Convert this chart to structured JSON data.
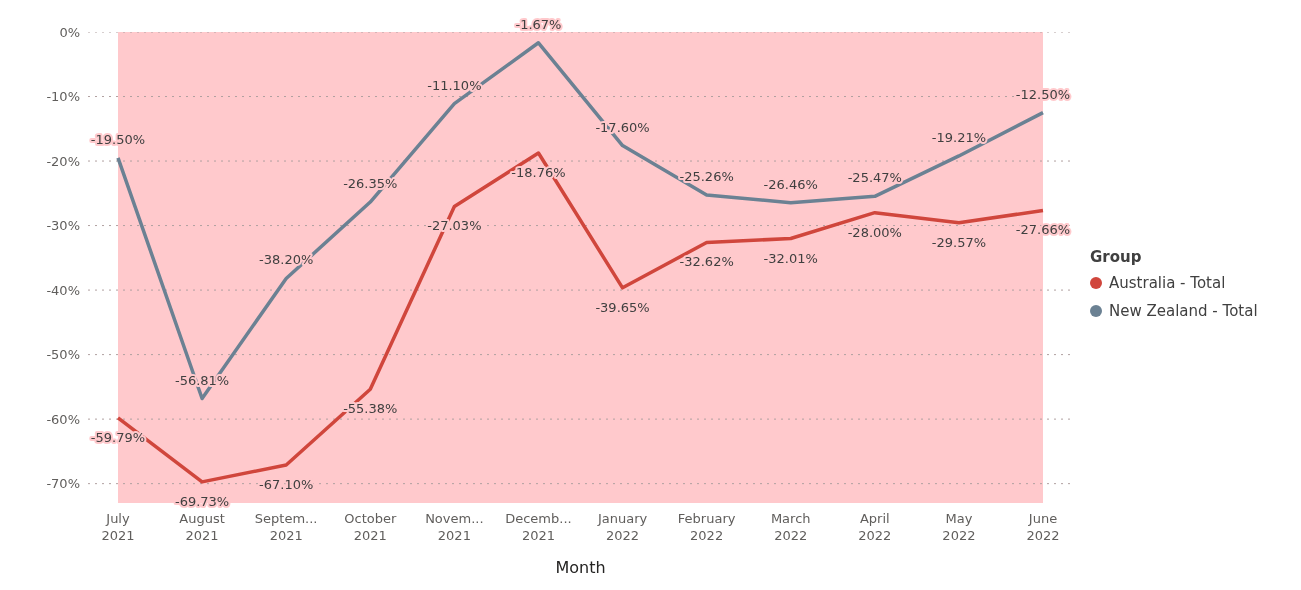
{
  "chart_data": {
    "type": "line",
    "xlabel": "Month",
    "legend_title": "Group",
    "legend": "right",
    "categories": [
      "July 2021",
      "August 2021",
      "Septem... 2021",
      "October 2021",
      "Novem... 2021",
      "Decemb... 2021",
      "January 2022",
      "February 2022",
      "March 2022",
      "April 2022",
      "May 2022",
      "June 2022"
    ],
    "series": [
      {
        "name": "Australia - Total",
        "color": "#d0463c",
        "values": [
          -59.79,
          -69.73,
          -67.1,
          -55.38,
          -27.03,
          -18.76,
          -39.65,
          -32.62,
          -32.01,
          -28.0,
          -29.57,
          -27.66
        ],
        "value_labels": [
          "-59.79%",
          "-69.73%",
          "-67.10%",
          "-55.38%",
          "-27.03%",
          "-18.76%",
          "-39.65%",
          "-32.62%",
          "-32.01%",
          "-28.00%",
          "-29.57%",
          "-27.66%"
        ]
      },
      {
        "name": "New Zealand - Total",
        "color": "#6b8193",
        "values": [
          -19.5,
          -56.81,
          -38.2,
          -26.35,
          -11.1,
          -1.67,
          -17.6,
          -25.26,
          -26.46,
          -25.47,
          -19.21,
          -12.5
        ],
        "value_labels": [
          "-19.50%",
          "-56.81%",
          "-38.20%",
          "-26.35%",
          "-11.10%",
          "-1.67%",
          "-17.60%",
          "-25.26%",
          "-26.46%",
          "-25.47%",
          "-19.21%",
          "-12.50%"
        ]
      }
    ],
    "ylim": [
      -73,
      0
    ],
    "yticks": [
      {
        "value": 0,
        "label": "0%"
      },
      {
        "value": -10,
        "label": "-10%"
      },
      {
        "value": -20,
        "label": "-20%"
      },
      {
        "value": -30,
        "label": "-30%"
      },
      {
        "value": -40,
        "label": "-40%"
      },
      {
        "value": -50,
        "label": "-50%"
      },
      {
        "value": -60,
        "label": "-60%"
      },
      {
        "value": -70,
        "label": "-70%"
      }
    ],
    "grid": "y",
    "marker": "none",
    "line_style": "solid",
    "bands": [
      {
        "axis": "y",
        "from": -73,
        "to": 0,
        "color": "#ffc9cc"
      }
    ]
  }
}
